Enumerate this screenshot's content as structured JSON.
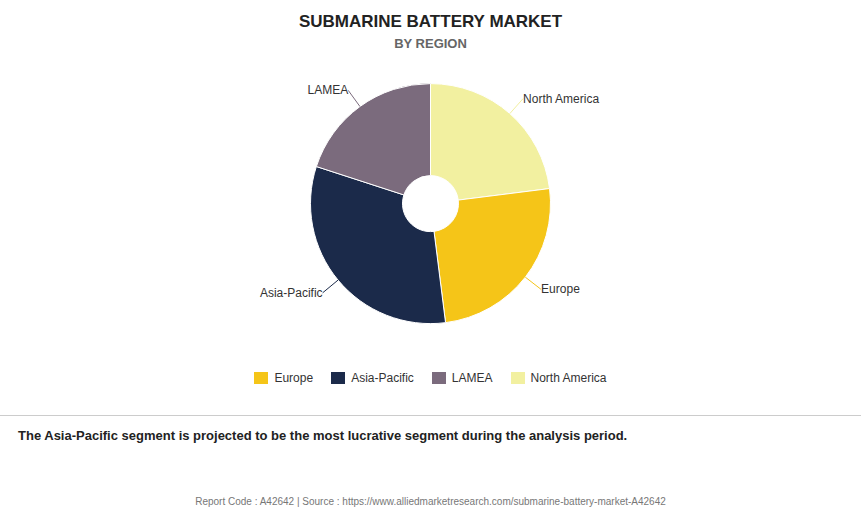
{
  "chart_data": {
    "type": "pie",
    "title": "SUBMARINE BATTERY MARKET",
    "subtitle": "BY REGION",
    "categories": [
      "North America",
      "Europe",
      "Asia-Pacific",
      "LAMEA"
    ],
    "values": [
      23,
      25,
      32,
      20
    ],
    "colors": [
      "#F2F0A0",
      "#F5C518",
      "#1B2A4A",
      "#7B6B7D"
    ],
    "legend": "bottom",
    "legend_order": [
      "Europe",
      "Asia-Pacific",
      "LAMEA",
      "North America"
    ],
    "annotations": [
      "The Asia-Pacific segment is projected to be the most lucrative segment during the analysis period.",
      "Report Code : A42642  |  Source : https://www.alliedmarketresearch.com/submarine-battery-market-A42642"
    ]
  }
}
